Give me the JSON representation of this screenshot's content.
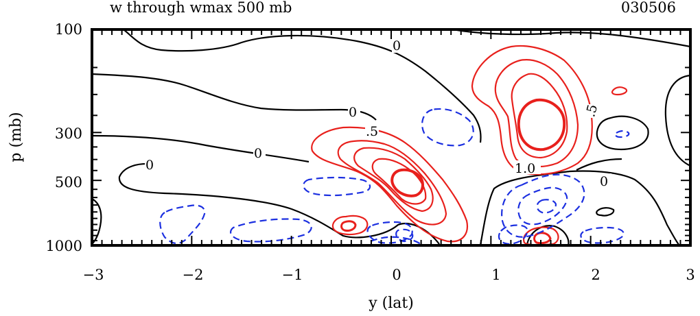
{
  "header": {
    "title_left": "w through wmax 500 mb",
    "title_right": "030506"
  },
  "chart_data": {
    "type": "contour",
    "title": "w through wmax 500 mb",
    "date_label": "030506",
    "xlabel": "y (lat)",
    "ylabel": "p (mb)",
    "xlim": [
      -3,
      3
    ],
    "ylim": [
      1000,
      100
    ],
    "y_scale": "log",
    "x_ticks": [
      "−3",
      "−2",
      "−1",
      "0",
      "1",
      "2",
      "3"
    ],
    "y_ticks": [
      "100",
      "300",
      "500",
      "1000"
    ],
    "grid": false,
    "contour_labels": [
      "0",
      "0",
      "0",
      "0",
      "0",
      ".5",
      ".5",
      "1.0"
    ],
    "series": [
      {
        "style": "black solid",
        "color": "#000000"
      },
      {
        "style": "red solid",
        "color": "#e8201c"
      },
      {
        "style": "blue dashed",
        "color": "#1b2fe0"
      }
    ]
  }
}
